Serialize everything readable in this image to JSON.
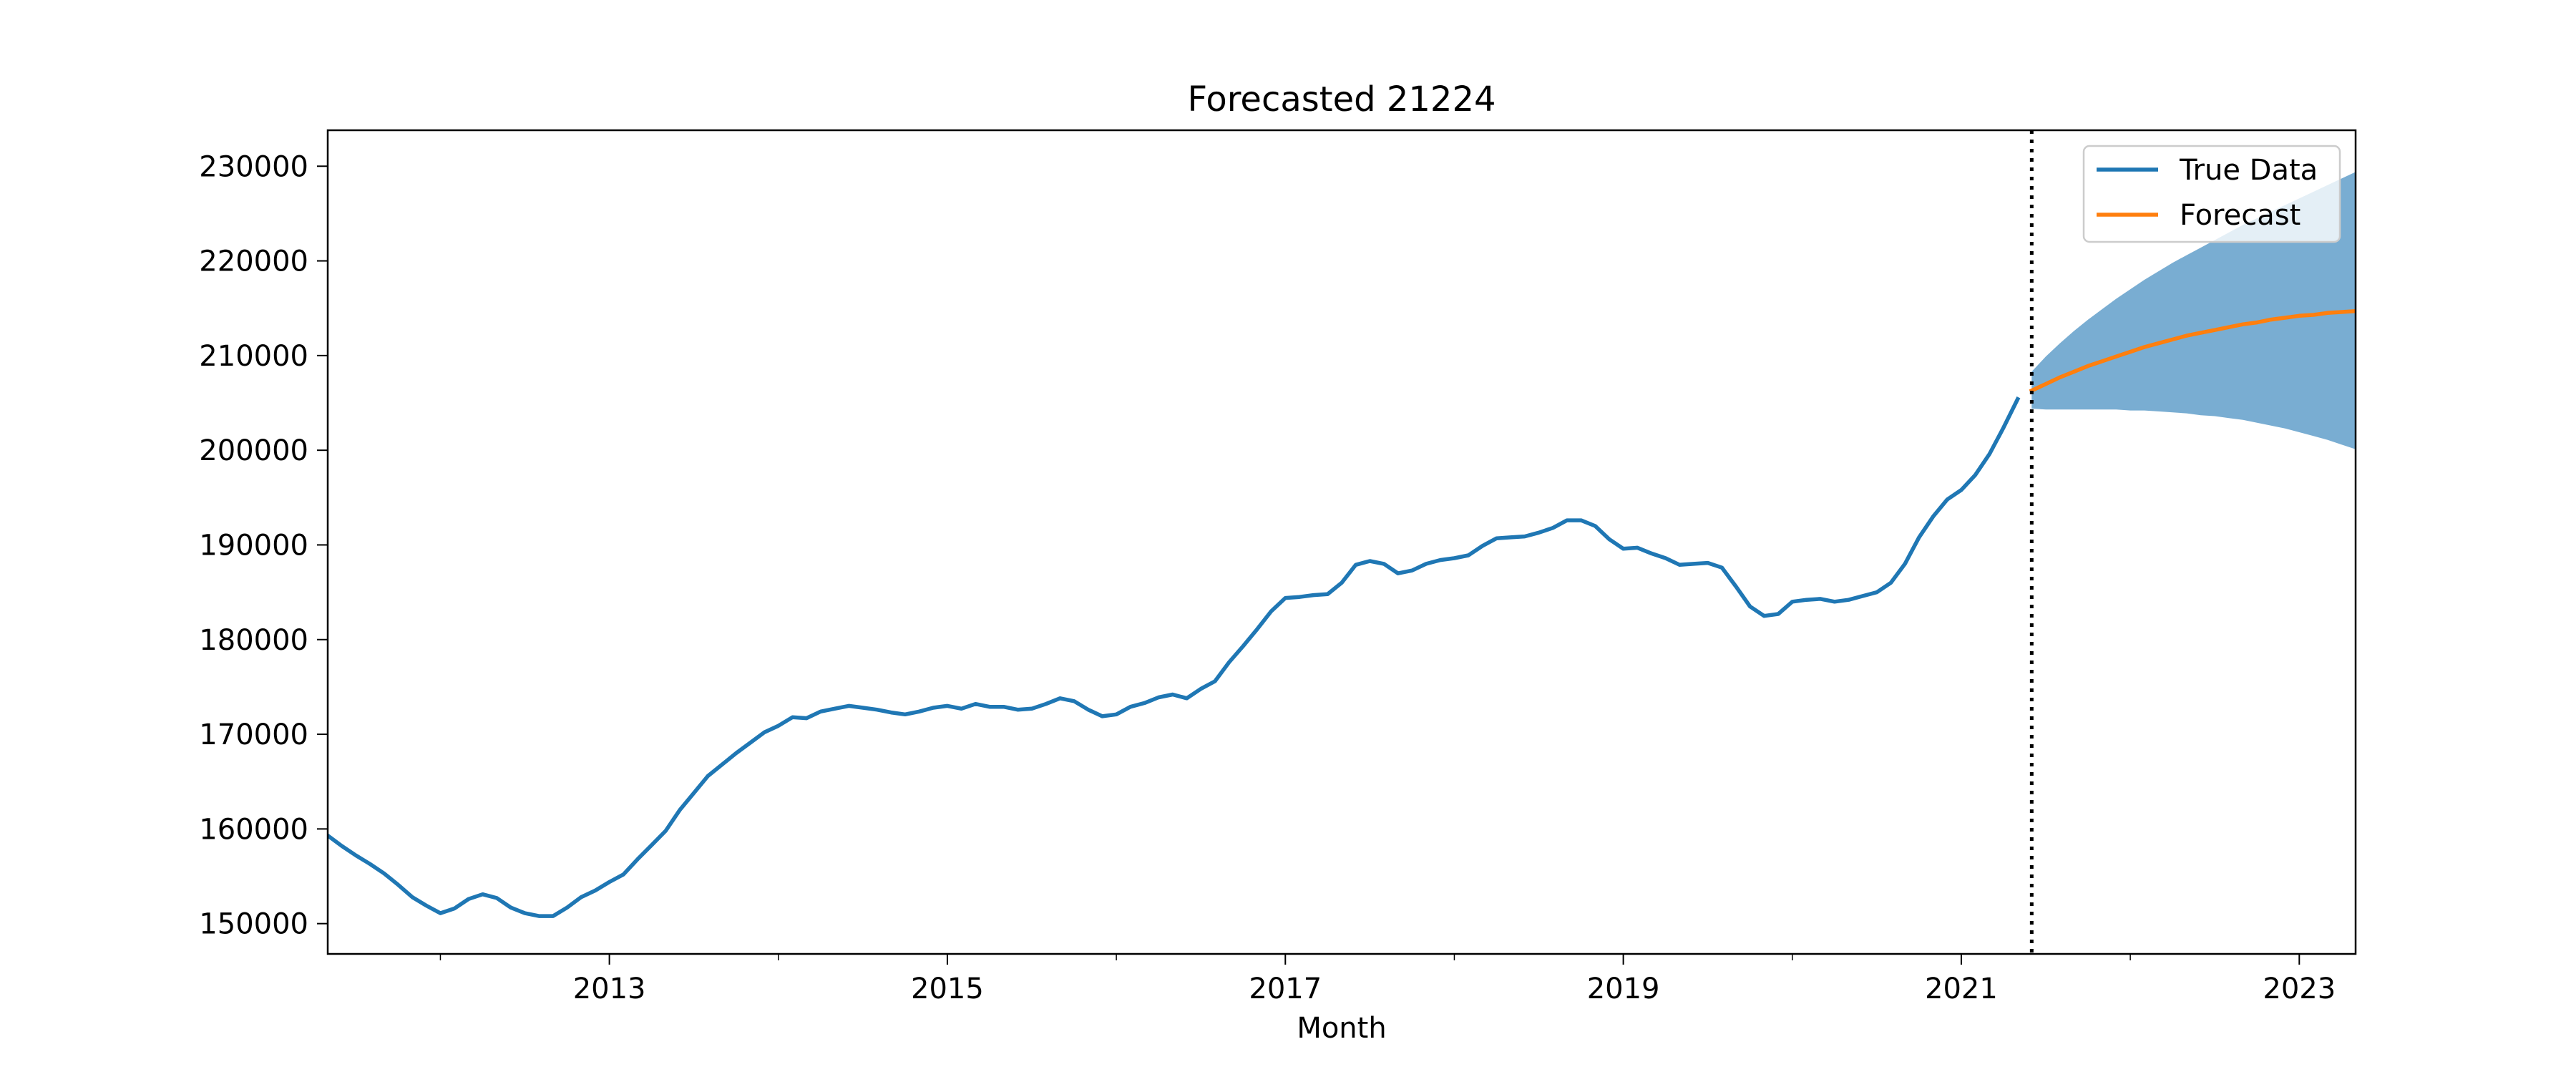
{
  "chart_data": {
    "type": "line",
    "title": "Forecasted 21224",
    "xlabel": "Month",
    "ylabel": "",
    "x_axis_type": "date",
    "xlim": [
      "2011-05",
      "2023-05"
    ],
    "ylim": [
      146800,
      233800
    ],
    "x_ticks": [
      {
        "value": "2013-01",
        "label": "2013"
      },
      {
        "value": "2015-01",
        "label": "2015"
      },
      {
        "value": "2017-01",
        "label": "2017"
      },
      {
        "value": "2019-01",
        "label": "2019"
      },
      {
        "value": "2021-01",
        "label": "2021"
      },
      {
        "value": "2023-01",
        "label": "2023"
      }
    ],
    "x_minor_ticks": [
      "2012-01",
      "2014-01",
      "2016-01",
      "2018-01",
      "2020-01",
      "2022-01"
    ],
    "y_ticks": [
      150000,
      160000,
      170000,
      180000,
      190000,
      200000,
      210000,
      220000,
      230000
    ],
    "y_tick_labels": [
      "150000",
      "160000",
      "170000",
      "180000",
      "190000",
      "200000",
      "210000",
      "220000",
      "230000"
    ],
    "grid": false,
    "legend_position": "top-right",
    "forecast_start": "2021-06",
    "series": [
      {
        "name": "True Data",
        "color": "#1f77b4",
        "points": [
          [
            "2011-05",
            159300
          ],
          [
            "2011-06",
            158200
          ],
          [
            "2011-07",
            157200
          ],
          [
            "2011-08",
            156300
          ],
          [
            "2011-09",
            155300
          ],
          [
            "2011-10",
            154100
          ],
          [
            "2011-11",
            152800
          ],
          [
            "2011-12",
            151900
          ],
          [
            "2012-01",
            151100
          ],
          [
            "2012-02",
            151600
          ],
          [
            "2012-03",
            152600
          ],
          [
            "2012-04",
            153100
          ],
          [
            "2012-05",
            152700
          ],
          [
            "2012-06",
            151700
          ],
          [
            "2012-07",
            151100
          ],
          [
            "2012-08",
            150800
          ],
          [
            "2012-09",
            150800
          ],
          [
            "2012-10",
            151700
          ],
          [
            "2012-11",
            152800
          ],
          [
            "2012-12",
            153500
          ],
          [
            "2013-01",
            154400
          ],
          [
            "2013-02",
            155200
          ],
          [
            "2013-03",
            156800
          ],
          [
            "2013-04",
            158300
          ],
          [
            "2013-05",
            159800
          ],
          [
            "2013-06",
            162000
          ],
          [
            "2013-07",
            163800
          ],
          [
            "2013-08",
            165600
          ],
          [
            "2013-09",
            166800
          ],
          [
            "2013-10",
            168000
          ],
          [
            "2013-11",
            169100
          ],
          [
            "2013-12",
            170200
          ],
          [
            "2014-01",
            170900
          ],
          [
            "2014-02",
            171800
          ],
          [
            "2014-03",
            171700
          ],
          [
            "2014-04",
            172400
          ],
          [
            "2014-05",
            172700
          ],
          [
            "2014-06",
            173000
          ],
          [
            "2014-07",
            172800
          ],
          [
            "2014-08",
            172600
          ],
          [
            "2014-09",
            172300
          ],
          [
            "2014-10",
            172100
          ],
          [
            "2014-11",
            172400
          ],
          [
            "2014-12",
            172800
          ],
          [
            "2015-01",
            173000
          ],
          [
            "2015-02",
            172700
          ],
          [
            "2015-03",
            173200
          ],
          [
            "2015-04",
            172900
          ],
          [
            "2015-05",
            172900
          ],
          [
            "2015-06",
            172600
          ],
          [
            "2015-07",
            172700
          ],
          [
            "2015-08",
            173200
          ],
          [
            "2015-09",
            173800
          ],
          [
            "2015-10",
            173500
          ],
          [
            "2015-11",
            172600
          ],
          [
            "2015-12",
            171900
          ],
          [
            "2016-01",
            172100
          ],
          [
            "2016-02",
            172900
          ],
          [
            "2016-03",
            173300
          ],
          [
            "2016-04",
            173900
          ],
          [
            "2016-05",
            174200
          ],
          [
            "2016-06",
            173800
          ],
          [
            "2016-07",
            174800
          ],
          [
            "2016-08",
            175600
          ],
          [
            "2016-09",
            177600
          ],
          [
            "2016-10",
            179300
          ],
          [
            "2016-11",
            181100
          ],
          [
            "2016-12",
            183000
          ],
          [
            "2017-01",
            184400
          ],
          [
            "2017-02",
            184500
          ],
          [
            "2017-03",
            184700
          ],
          [
            "2017-04",
            184800
          ],
          [
            "2017-05",
            186000
          ],
          [
            "2017-06",
            187900
          ],
          [
            "2017-07",
            188300
          ],
          [
            "2017-08",
            188000
          ],
          [
            "2017-09",
            187000
          ],
          [
            "2017-10",
            187300
          ],
          [
            "2017-11",
            188000
          ],
          [
            "2017-12",
            188400
          ],
          [
            "2018-01",
            188600
          ],
          [
            "2018-02",
            188900
          ],
          [
            "2018-03",
            189900
          ],
          [
            "2018-04",
            190700
          ],
          [
            "2018-05",
            190800
          ],
          [
            "2018-06",
            190900
          ],
          [
            "2018-07",
            191300
          ],
          [
            "2018-08",
            191800
          ],
          [
            "2018-09",
            192600
          ],
          [
            "2018-10",
            192600
          ],
          [
            "2018-11",
            192000
          ],
          [
            "2018-12",
            190600
          ],
          [
            "2019-01",
            189600
          ],
          [
            "2019-02",
            189700
          ],
          [
            "2019-03",
            189100
          ],
          [
            "2019-04",
            188600
          ],
          [
            "2019-05",
            187900
          ],
          [
            "2019-06",
            188000
          ],
          [
            "2019-07",
            188100
          ],
          [
            "2019-08",
            187600
          ],
          [
            "2019-09",
            185600
          ],
          [
            "2019-10",
            183500
          ],
          [
            "2019-11",
            182500
          ],
          [
            "2019-12",
            182700
          ],
          [
            "2020-01",
            184000
          ],
          [
            "2020-02",
            184200
          ],
          [
            "2020-03",
            184300
          ],
          [
            "2020-04",
            184000
          ],
          [
            "2020-05",
            184200
          ],
          [
            "2020-06",
            184600
          ],
          [
            "2020-07",
            185000
          ],
          [
            "2020-08",
            186000
          ],
          [
            "2020-09",
            188000
          ],
          [
            "2020-10",
            190800
          ],
          [
            "2020-11",
            193000
          ],
          [
            "2020-12",
            194800
          ],
          [
            "2021-01",
            195800
          ],
          [
            "2021-02",
            197400
          ],
          [
            "2021-03",
            199600
          ],
          [
            "2021-04",
            202400
          ],
          [
            "2021-05",
            205400
          ]
        ]
      },
      {
        "name": "Forecast",
        "color": "#ff7f0e",
        "points": [
          [
            "2021-06",
            206300
          ],
          [
            "2021-07",
            207000
          ],
          [
            "2021-08",
            207700
          ],
          [
            "2021-09",
            208300
          ],
          [
            "2021-10",
            208900
          ],
          [
            "2021-11",
            209400
          ],
          [
            "2021-12",
            209900
          ],
          [
            "2022-01",
            210400
          ],
          [
            "2022-02",
            210900
          ],
          [
            "2022-03",
            211300
          ],
          [
            "2022-04",
            211700
          ],
          [
            "2022-05",
            212100
          ],
          [
            "2022-06",
            212400
          ],
          [
            "2022-07",
            212700
          ],
          [
            "2022-08",
            213000
          ],
          [
            "2022-09",
            213300
          ],
          [
            "2022-10",
            213500
          ],
          [
            "2022-11",
            213800
          ],
          [
            "2022-12",
            214000
          ],
          [
            "2023-01",
            214200
          ],
          [
            "2023-02",
            214300
          ],
          [
            "2023-03",
            214500
          ],
          [
            "2023-04",
            214600
          ],
          [
            "2023-05",
            214700
          ]
        ]
      }
    ],
    "confidence_band": {
      "color": "#1f77b4",
      "opacity": 0.6,
      "points": [
        [
          "2021-06",
          204400,
          208300
        ],
        [
          "2021-07",
          204300,
          209900
        ],
        [
          "2021-08",
          204300,
          211300
        ],
        [
          "2021-09",
          204300,
          212600
        ],
        [
          "2021-10",
          204300,
          213800
        ],
        [
          "2021-11",
          204300,
          214900
        ],
        [
          "2021-12",
          204300,
          216000
        ],
        [
          "2022-01",
          204200,
          217000
        ],
        [
          "2022-02",
          204200,
          218000
        ],
        [
          "2022-03",
          204100,
          218900
        ],
        [
          "2022-04",
          204000,
          219800
        ],
        [
          "2022-05",
          203900,
          220600
        ],
        [
          "2022-06",
          203700,
          221400
        ],
        [
          "2022-07",
          203600,
          222200
        ],
        [
          "2022-08",
          203400,
          223000
        ],
        [
          "2022-09",
          203200,
          223800
        ],
        [
          "2022-10",
          202900,
          224500
        ],
        [
          "2022-11",
          202600,
          225200
        ],
        [
          "2022-12",
          202300,
          225900
        ],
        [
          "2023-01",
          201900,
          226600
        ],
        [
          "2023-02",
          201500,
          227300
        ],
        [
          "2023-03",
          201100,
          228000
        ],
        [
          "2023-04",
          200600,
          228700
        ],
        [
          "2023-05",
          200100,
          229400
        ]
      ]
    }
  }
}
